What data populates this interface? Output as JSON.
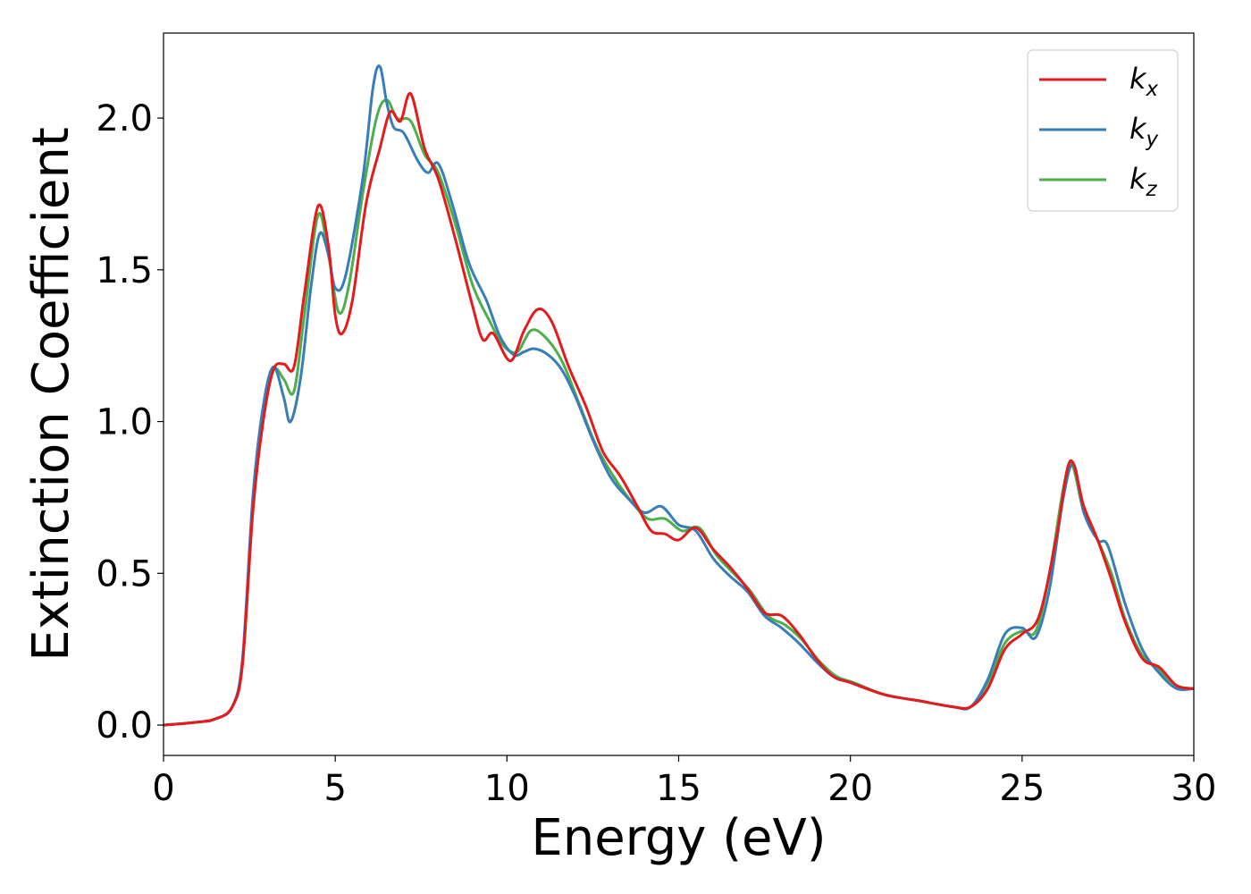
{
  "chart_data": {
    "type": "line",
    "xlabel": "Energy (eV)",
    "ylabel": "Extinction Coefficient",
    "xlim": [
      0,
      30
    ],
    "ylim": [
      -0.1,
      2.28
    ],
    "xticks": [
      0,
      5,
      10,
      15,
      20,
      25,
      30
    ],
    "yticks": [
      0.0,
      0.5,
      1.0,
      1.5,
      2.0
    ],
    "xtick_labels": [
      "0",
      "5",
      "10",
      "15",
      "20",
      "25",
      "30"
    ],
    "ytick_labels": [
      "0.0",
      "0.5",
      "1.0",
      "1.5",
      "2.0"
    ],
    "grid": false,
    "legend_position": "top-right",
    "series": [
      {
        "name": "k_x",
        "legend_base": "k",
        "legend_sub": "x",
        "color": "#e41a1c",
        "points": [
          [
            0,
            0.0
          ],
          [
            1,
            0.01
          ],
          [
            1.5,
            0.02
          ],
          [
            2,
            0.06
          ],
          [
            2.3,
            0.2
          ],
          [
            2.6,
            0.7
          ],
          [
            2.9,
            1.0
          ],
          [
            3.2,
            1.17
          ],
          [
            3.5,
            1.19
          ],
          [
            3.8,
            1.18
          ],
          [
            4.1,
            1.42
          ],
          [
            4.5,
            1.71
          ],
          [
            4.8,
            1.58
          ],
          [
            5.0,
            1.35
          ],
          [
            5.2,
            1.29
          ],
          [
            5.5,
            1.4
          ],
          [
            5.9,
            1.72
          ],
          [
            6.3,
            1.9
          ],
          [
            6.6,
            2.02
          ],
          [
            6.9,
            1.99
          ],
          [
            7.2,
            2.08
          ],
          [
            7.6,
            1.9
          ],
          [
            8.0,
            1.8
          ],
          [
            8.5,
            1.6
          ],
          [
            9.0,
            1.38
          ],
          [
            9.3,
            1.27
          ],
          [
            9.6,
            1.29
          ],
          [
            10.1,
            1.2
          ],
          [
            10.5,
            1.3
          ],
          [
            10.9,
            1.37
          ],
          [
            11.3,
            1.33
          ],
          [
            11.8,
            1.18
          ],
          [
            12.3,
            1.05
          ],
          [
            12.8,
            0.9
          ],
          [
            13.3,
            0.82
          ],
          [
            13.8,
            0.72
          ],
          [
            14.2,
            0.64
          ],
          [
            14.6,
            0.63
          ],
          [
            15.0,
            0.61
          ],
          [
            15.5,
            0.65
          ],
          [
            16.0,
            0.58
          ],
          [
            16.5,
            0.52
          ],
          [
            17.0,
            0.45
          ],
          [
            17.5,
            0.37
          ],
          [
            18.0,
            0.36
          ],
          [
            18.5,
            0.3
          ],
          [
            19.0,
            0.22
          ],
          [
            19.5,
            0.16
          ],
          [
            20.0,
            0.14
          ],
          [
            21.0,
            0.1
          ],
          [
            22.0,
            0.08
          ],
          [
            23.0,
            0.06
          ],
          [
            23.5,
            0.06
          ],
          [
            24.0,
            0.12
          ],
          [
            24.5,
            0.25
          ],
          [
            25.0,
            0.3
          ],
          [
            25.5,
            0.36
          ],
          [
            26.0,
            0.62
          ],
          [
            26.4,
            0.87
          ],
          [
            26.8,
            0.72
          ],
          [
            27.2,
            0.61
          ],
          [
            27.6,
            0.48
          ],
          [
            28.0,
            0.34
          ],
          [
            28.5,
            0.22
          ],
          [
            29.0,
            0.19
          ],
          [
            29.5,
            0.13
          ],
          [
            30.0,
            0.12
          ]
        ]
      },
      {
        "name": "k_y",
        "legend_base": "k",
        "legend_sub": "y",
        "color": "#377eb8",
        "points": [
          [
            0,
            0.0
          ],
          [
            1,
            0.01
          ],
          [
            1.5,
            0.02
          ],
          [
            2,
            0.06
          ],
          [
            2.3,
            0.22
          ],
          [
            2.6,
            0.75
          ],
          [
            2.9,
            1.05
          ],
          [
            3.2,
            1.18
          ],
          [
            3.5,
            1.08
          ],
          [
            3.7,
            1.0
          ],
          [
            4.0,
            1.15
          ],
          [
            4.3,
            1.45
          ],
          [
            4.55,
            1.62
          ],
          [
            4.8,
            1.55
          ],
          [
            5.0,
            1.44
          ],
          [
            5.3,
            1.48
          ],
          [
            5.8,
            1.8
          ],
          [
            6.1,
            2.1
          ],
          [
            6.3,
            2.17
          ],
          [
            6.5,
            2.05
          ],
          [
            6.7,
            1.97
          ],
          [
            7.0,
            1.95
          ],
          [
            7.4,
            1.86
          ],
          [
            7.7,
            1.82
          ],
          [
            8.0,
            1.85
          ],
          [
            8.4,
            1.72
          ],
          [
            8.9,
            1.52
          ],
          [
            9.4,
            1.4
          ],
          [
            9.8,
            1.28
          ],
          [
            10.2,
            1.22
          ],
          [
            10.5,
            1.23
          ],
          [
            10.8,
            1.24
          ],
          [
            11.2,
            1.22
          ],
          [
            11.6,
            1.17
          ],
          [
            12.0,
            1.08
          ],
          [
            12.5,
            0.94
          ],
          [
            13.0,
            0.82
          ],
          [
            13.5,
            0.75
          ],
          [
            14.0,
            0.7
          ],
          [
            14.5,
            0.72
          ],
          [
            15.0,
            0.66
          ],
          [
            15.5,
            0.64
          ],
          [
            16.0,
            0.55
          ],
          [
            16.5,
            0.49
          ],
          [
            17.0,
            0.44
          ],
          [
            17.5,
            0.36
          ],
          [
            18.0,
            0.32
          ],
          [
            18.5,
            0.27
          ],
          [
            19.0,
            0.21
          ],
          [
            19.5,
            0.16
          ],
          [
            20.0,
            0.14
          ],
          [
            21.0,
            0.1
          ],
          [
            22.0,
            0.08
          ],
          [
            23.0,
            0.06
          ],
          [
            23.5,
            0.06
          ],
          [
            24.0,
            0.15
          ],
          [
            24.5,
            0.3
          ],
          [
            25.0,
            0.32
          ],
          [
            25.4,
            0.29
          ],
          [
            25.8,
            0.45
          ],
          [
            26.2,
            0.75
          ],
          [
            26.5,
            0.86
          ],
          [
            26.8,
            0.7
          ],
          [
            27.2,
            0.61
          ],
          [
            27.5,
            0.59
          ],
          [
            28.0,
            0.4
          ],
          [
            28.5,
            0.25
          ],
          [
            29.0,
            0.17
          ],
          [
            29.5,
            0.12
          ],
          [
            30.0,
            0.12
          ]
        ]
      },
      {
        "name": "k_z",
        "legend_base": "k",
        "legend_sub": "z",
        "color": "#4daf4a",
        "points": [
          [
            0,
            0.0
          ],
          [
            1,
            0.01
          ],
          [
            1.5,
            0.02
          ],
          [
            2,
            0.06
          ],
          [
            2.3,
            0.21
          ],
          [
            2.6,
            0.72
          ],
          [
            2.9,
            1.02
          ],
          [
            3.2,
            1.17
          ],
          [
            3.5,
            1.14
          ],
          [
            3.8,
            1.1
          ],
          [
            4.1,
            1.35
          ],
          [
            4.5,
            1.68
          ],
          [
            4.8,
            1.55
          ],
          [
            5.1,
            1.36
          ],
          [
            5.4,
            1.45
          ],
          [
            5.8,
            1.75
          ],
          [
            6.2,
            2.0
          ],
          [
            6.5,
            2.06
          ],
          [
            6.8,
            2.0
          ],
          [
            7.2,
            1.99
          ],
          [
            7.6,
            1.88
          ],
          [
            8.0,
            1.82
          ],
          [
            8.5,
            1.65
          ],
          [
            9.0,
            1.45
          ],
          [
            9.5,
            1.33
          ],
          [
            9.9,
            1.25
          ],
          [
            10.3,
            1.23
          ],
          [
            10.7,
            1.3
          ],
          [
            11.1,
            1.28
          ],
          [
            11.6,
            1.2
          ],
          [
            12.1,
            1.06
          ],
          [
            12.6,
            0.92
          ],
          [
            13.1,
            0.82
          ],
          [
            13.6,
            0.74
          ],
          [
            14.1,
            0.68
          ],
          [
            14.6,
            0.68
          ],
          [
            15.1,
            0.64
          ],
          [
            15.6,
            0.65
          ],
          [
            16.1,
            0.56
          ],
          [
            16.6,
            0.5
          ],
          [
            17.1,
            0.44
          ],
          [
            17.6,
            0.36
          ],
          [
            18.1,
            0.33
          ],
          [
            18.6,
            0.28
          ],
          [
            19.1,
            0.21
          ],
          [
            19.6,
            0.16
          ],
          [
            20.1,
            0.14
          ],
          [
            21.0,
            0.1
          ],
          [
            22.0,
            0.08
          ],
          [
            23.0,
            0.06
          ],
          [
            23.5,
            0.06
          ],
          [
            24.0,
            0.14
          ],
          [
            24.5,
            0.27
          ],
          [
            25.0,
            0.31
          ],
          [
            25.4,
            0.31
          ],
          [
            25.8,
            0.5
          ],
          [
            26.2,
            0.78
          ],
          [
            26.45,
            0.86
          ],
          [
            26.8,
            0.7
          ],
          [
            27.2,
            0.61
          ],
          [
            27.6,
            0.5
          ],
          [
            28.0,
            0.35
          ],
          [
            28.5,
            0.23
          ],
          [
            29.0,
            0.18
          ],
          [
            29.5,
            0.13
          ],
          [
            30.0,
            0.12
          ]
        ]
      }
    ]
  }
}
